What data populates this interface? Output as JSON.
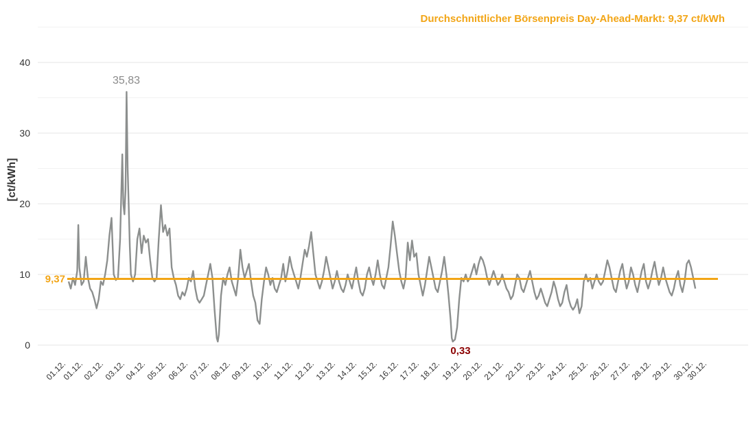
{
  "chart_data": {
    "type": "line",
    "title": "Durchschnittlicher Börsenpreis Day-Ahead-Markt: 9,37 ct/kWh",
    "ylabel": "[ct/kWh]",
    "xlabel": "",
    "ylim": [
      0,
      40
    ],
    "yticks": [
      "0",
      "10",
      "20",
      "30",
      "40"
    ],
    "grid": true,
    "x_labels": [
      "01.12.",
      "01.12.",
      "02.12.",
      "03.12.",
      "04.12.",
      "05.12.",
      "06.12.",
      "07.12.",
      "08.12.",
      "09.12.",
      "10.12.",
      "11.12.",
      "12.12.",
      "13.12.",
      "14.12.",
      "15.12.",
      "16.12.",
      "17.12.",
      "18.12.",
      "19.12.",
      "20.12.",
      "21.12.",
      "22.12.",
      "23.12.",
      "24.12.",
      "25.12.",
      "26.12.",
      "27.12.",
      "28.12.",
      "29.12.",
      "30.12.",
      "30.12."
    ],
    "average": {
      "value": 9.37,
      "label": "9,37"
    },
    "max": {
      "day": 3.6,
      "value": 35.83,
      "label": "35,83"
    },
    "min": {
      "day": 19.2,
      "value": 0.33,
      "label": "0,33"
    },
    "series": [
      {
        "name": "",
        "color": "#8c8f8e",
        "points": [
          [
            1.0,
            9.0
          ],
          [
            1.1,
            8.0
          ],
          [
            1.2,
            9.5
          ],
          [
            1.3,
            8.5
          ],
          [
            1.4,
            10.5
          ],
          [
            1.45,
            17.0
          ],
          [
            1.5,
            11.0
          ],
          [
            1.6,
            8.5
          ],
          [
            1.7,
            9.0
          ],
          [
            1.8,
            12.5
          ],
          [
            1.9,
            9.5
          ],
          [
            2.0,
            8.0
          ],
          [
            2.1,
            7.5
          ],
          [
            2.2,
            6.5
          ],
          [
            2.3,
            5.2
          ],
          [
            2.4,
            6.5
          ],
          [
            2.5,
            9.0
          ],
          [
            2.6,
            8.5
          ],
          [
            2.7,
            10.0
          ],
          [
            2.8,
            12.0
          ],
          [
            2.9,
            15.5
          ],
          [
            3.0,
            18.0
          ],
          [
            3.05,
            14.0
          ],
          [
            3.1,
            10.0
          ],
          [
            3.2,
            9.2
          ],
          [
            3.3,
            9.5
          ],
          [
            3.4,
            15.0
          ],
          [
            3.5,
            27.0
          ],
          [
            3.55,
            20.0
          ],
          [
            3.6,
            18.5
          ],
          [
            3.65,
            22.0
          ],
          [
            3.7,
            35.83
          ],
          [
            3.75,
            25.0
          ],
          [
            3.8,
            19.5
          ],
          [
            3.85,
            14.0
          ],
          [
            3.9,
            10.0
          ],
          [
            4.0,
            9.0
          ],
          [
            4.1,
            10.0
          ],
          [
            4.2,
            15.0
          ],
          [
            4.3,
            16.5
          ],
          [
            4.4,
            13.0
          ],
          [
            4.5,
            15.5
          ],
          [
            4.6,
            14.5
          ],
          [
            4.7,
            15.0
          ],
          [
            4.8,
            12.0
          ],
          [
            4.9,
            9.5
          ],
          [
            5.0,
            9.0
          ],
          [
            5.1,
            9.5
          ],
          [
            5.2,
            15.0
          ],
          [
            5.3,
            19.8
          ],
          [
            5.4,
            16.0
          ],
          [
            5.5,
            17.0
          ],
          [
            5.6,
            15.5
          ],
          [
            5.7,
            16.5
          ],
          [
            5.8,
            11.0
          ],
          [
            5.9,
            9.5
          ],
          [
            6.0,
            8.5
          ],
          [
            6.1,
            7.0
          ],
          [
            6.2,
            6.5
          ],
          [
            6.3,
            7.5
          ],
          [
            6.4,
            7.0
          ],
          [
            6.5,
            8.0
          ],
          [
            6.6,
            9.5
          ],
          [
            6.7,
            9.0
          ],
          [
            6.8,
            10.5
          ],
          [
            6.9,
            8.0
          ],
          [
            7.0,
            6.5
          ],
          [
            7.1,
            6.0
          ],
          [
            7.2,
            6.5
          ],
          [
            7.3,
            7.0
          ],
          [
            7.4,
            8.5
          ],
          [
            7.5,
            10.0
          ],
          [
            7.6,
            11.5
          ],
          [
            7.7,
            9.5
          ],
          [
            7.8,
            5.0
          ],
          [
            7.9,
            1.0
          ],
          [
            7.95,
            0.5
          ],
          [
            8.0,
            1.5
          ],
          [
            8.1,
            7.0
          ],
          [
            8.2,
            9.5
          ],
          [
            8.3,
            8.5
          ],
          [
            8.4,
            10.0
          ],
          [
            8.5,
            11.0
          ],
          [
            8.6,
            9.0
          ],
          [
            8.7,
            8.0
          ],
          [
            8.8,
            7.0
          ],
          [
            8.9,
            9.5
          ],
          [
            9.0,
            13.5
          ],
          [
            9.1,
            11.0
          ],
          [
            9.2,
            9.5
          ],
          [
            9.3,
            10.5
          ],
          [
            9.4,
            11.5
          ],
          [
            9.5,
            9.0
          ],
          [
            9.6,
            7.0
          ],
          [
            9.7,
            6.0
          ],
          [
            9.8,
            3.5
          ],
          [
            9.9,
            3.0
          ],
          [
            10.0,
            6.5
          ],
          [
            10.1,
            9.0
          ],
          [
            10.2,
            11.0
          ],
          [
            10.3,
            10.0
          ],
          [
            10.4,
            8.5
          ],
          [
            10.5,
            9.5
          ],
          [
            10.6,
            8.0
          ],
          [
            10.7,
            7.5
          ],
          [
            10.8,
            8.5
          ],
          [
            10.9,
            9.5
          ],
          [
            11.0,
            11.5
          ],
          [
            11.1,
            9.0
          ],
          [
            11.2,
            10.5
          ],
          [
            11.3,
            12.5
          ],
          [
            11.4,
            11.0
          ],
          [
            11.5,
            10.0
          ],
          [
            11.6,
            9.0
          ],
          [
            11.7,
            8.0
          ],
          [
            11.8,
            9.5
          ],
          [
            11.9,
            11.5
          ],
          [
            12.0,
            13.5
          ],
          [
            12.1,
            12.5
          ],
          [
            12.2,
            14.0
          ],
          [
            12.3,
            16.0
          ],
          [
            12.4,
            13.0
          ],
          [
            12.5,
            10.0
          ],
          [
            12.6,
            9.0
          ],
          [
            12.7,
            8.0
          ],
          [
            12.8,
            9.0
          ],
          [
            12.9,
            10.5
          ],
          [
            13.0,
            12.5
          ],
          [
            13.1,
            11.0
          ],
          [
            13.2,
            9.5
          ],
          [
            13.3,
            8.0
          ],
          [
            13.4,
            9.0
          ],
          [
            13.5,
            10.5
          ],
          [
            13.6,
            9.0
          ],
          [
            13.7,
            8.0
          ],
          [
            13.8,
            7.5
          ],
          [
            13.9,
            8.5
          ],
          [
            14.0,
            10.0
          ],
          [
            14.1,
            9.0
          ],
          [
            14.2,
            8.0
          ],
          [
            14.3,
            9.5
          ],
          [
            14.4,
            11.0
          ],
          [
            14.5,
            9.0
          ],
          [
            14.6,
            7.5
          ],
          [
            14.7,
            7.0
          ],
          [
            14.8,
            8.0
          ],
          [
            14.9,
            10.0
          ],
          [
            15.0,
            11.0
          ],
          [
            15.1,
            9.5
          ],
          [
            15.2,
            8.5
          ],
          [
            15.3,
            10.0
          ],
          [
            15.4,
            12.0
          ],
          [
            15.5,
            10.0
          ],
          [
            15.6,
            8.5
          ],
          [
            15.7,
            8.0
          ],
          [
            15.8,
            9.5
          ],
          [
            15.9,
            11.0
          ],
          [
            16.0,
            14.0
          ],
          [
            16.1,
            17.5
          ],
          [
            16.2,
            15.5
          ],
          [
            16.3,
            13.0
          ],
          [
            16.4,
            10.5
          ],
          [
            16.5,
            9.0
          ],
          [
            16.6,
            8.0
          ],
          [
            16.7,
            9.5
          ],
          [
            16.8,
            14.5
          ],
          [
            16.9,
            12.0
          ],
          [
            17.0,
            14.8
          ],
          [
            17.1,
            12.5
          ],
          [
            17.2,
            13.0
          ],
          [
            17.3,
            10.0
          ],
          [
            17.4,
            8.5
          ],
          [
            17.5,
            7.0
          ],
          [
            17.6,
            8.5
          ],
          [
            17.7,
            10.5
          ],
          [
            17.8,
            12.5
          ],
          [
            17.9,
            11.0
          ],
          [
            18.0,
            9.5
          ],
          [
            18.1,
            8.0
          ],
          [
            18.2,
            7.5
          ],
          [
            18.3,
            9.0
          ],
          [
            18.4,
            10.5
          ],
          [
            18.5,
            12.5
          ],
          [
            18.6,
            10.0
          ],
          [
            18.7,
            7.0
          ],
          [
            18.8,
            3.5
          ],
          [
            18.85,
            1.0
          ],
          [
            18.9,
            0.5
          ],
          [
            19.0,
            0.8
          ],
          [
            19.1,
            2.5
          ],
          [
            19.2,
            6.5
          ],
          [
            19.3,
            9.5
          ],
          [
            19.4,
            9.0
          ],
          [
            19.5,
            10.0
          ],
          [
            19.6,
            9.0
          ],
          [
            19.7,
            9.5
          ],
          [
            19.8,
            10.5
          ],
          [
            19.9,
            11.5
          ],
          [
            20.0,
            10.0
          ],
          [
            20.1,
            11.5
          ],
          [
            20.2,
            12.5
          ],
          [
            20.3,
            12.0
          ],
          [
            20.4,
            11.0
          ],
          [
            20.5,
            9.5
          ],
          [
            20.6,
            8.5
          ],
          [
            20.7,
            9.5
          ],
          [
            20.8,
            10.5
          ],
          [
            20.9,
            9.5
          ],
          [
            21.0,
            8.5
          ],
          [
            21.1,
            9.0
          ],
          [
            21.2,
            10.0
          ],
          [
            21.3,
            9.0
          ],
          [
            21.4,
            8.0
          ],
          [
            21.5,
            7.5
          ],
          [
            21.6,
            6.5
          ],
          [
            21.7,
            7.0
          ],
          [
            21.8,
            8.5
          ],
          [
            21.9,
            10.0
          ],
          [
            22.0,
            9.5
          ],
          [
            22.1,
            8.0
          ],
          [
            22.2,
            7.5
          ],
          [
            22.3,
            8.5
          ],
          [
            22.4,
            9.5
          ],
          [
            22.5,
            10.5
          ],
          [
            22.6,
            9.0
          ],
          [
            22.7,
            7.5
          ],
          [
            22.8,
            6.5
          ],
          [
            22.9,
            7.0
          ],
          [
            23.0,
            8.0
          ],
          [
            23.1,
            7.0
          ],
          [
            23.2,
            6.0
          ],
          [
            23.3,
            5.5
          ],
          [
            23.4,
            6.5
          ],
          [
            23.5,
            7.5
          ],
          [
            23.6,
            9.0
          ],
          [
            23.7,
            8.0
          ],
          [
            23.8,
            6.5
          ],
          [
            23.9,
            5.5
          ],
          [
            24.0,
            6.0
          ],
          [
            24.1,
            7.5
          ],
          [
            24.2,
            8.5
          ],
          [
            24.3,
            6.5
          ],
          [
            24.4,
            5.5
          ],
          [
            24.5,
            5.0
          ],
          [
            24.6,
            5.5
          ],
          [
            24.7,
            6.5
          ],
          [
            24.8,
            4.5
          ],
          [
            24.9,
            5.5
          ],
          [
            25.0,
            9.0
          ],
          [
            25.1,
            10.0
          ],
          [
            25.2,
            9.0
          ],
          [
            25.3,
            9.5
          ],
          [
            25.4,
            8.0
          ],
          [
            25.5,
            9.0
          ],
          [
            25.6,
            10.0
          ],
          [
            25.7,
            9.0
          ],
          [
            25.8,
            8.5
          ],
          [
            25.9,
            9.0
          ],
          [
            26.0,
            10.5
          ],
          [
            26.1,
            12.0
          ],
          [
            26.2,
            11.0
          ],
          [
            26.3,
            9.5
          ],
          [
            26.4,
            8.0
          ],
          [
            26.5,
            7.5
          ],
          [
            26.6,
            9.0
          ],
          [
            26.7,
            10.5
          ],
          [
            26.8,
            11.5
          ],
          [
            26.9,
            9.5
          ],
          [
            27.0,
            8.0
          ],
          [
            27.1,
            9.0
          ],
          [
            27.2,
            11.0
          ],
          [
            27.3,
            10.0
          ],
          [
            27.4,
            8.5
          ],
          [
            27.5,
            7.5
          ],
          [
            27.6,
            9.0
          ],
          [
            27.7,
            10.5
          ],
          [
            27.8,
            11.5
          ],
          [
            27.9,
            9.0
          ],
          [
            28.0,
            8.0
          ],
          [
            28.1,
            9.0
          ],
          [
            28.2,
            10.5
          ],
          [
            28.3,
            11.8
          ],
          [
            28.4,
            10.0
          ],
          [
            28.5,
            8.5
          ],
          [
            28.6,
            9.5
          ],
          [
            28.7,
            11.0
          ],
          [
            28.8,
            9.5
          ],
          [
            28.9,
            8.5
          ],
          [
            29.0,
            7.5
          ],
          [
            29.1,
            7.0
          ],
          [
            29.2,
            8.0
          ],
          [
            29.3,
            9.5
          ],
          [
            29.4,
            10.5
          ],
          [
            29.5,
            8.5
          ],
          [
            29.6,
            7.5
          ],
          [
            29.7,
            9.0
          ],
          [
            29.8,
            11.5
          ],
          [
            29.9,
            12.0
          ],
          [
            30.0,
            11.0
          ],
          [
            30.1,
            9.5
          ],
          [
            30.2,
            8.0
          ]
        ]
      }
    ]
  }
}
